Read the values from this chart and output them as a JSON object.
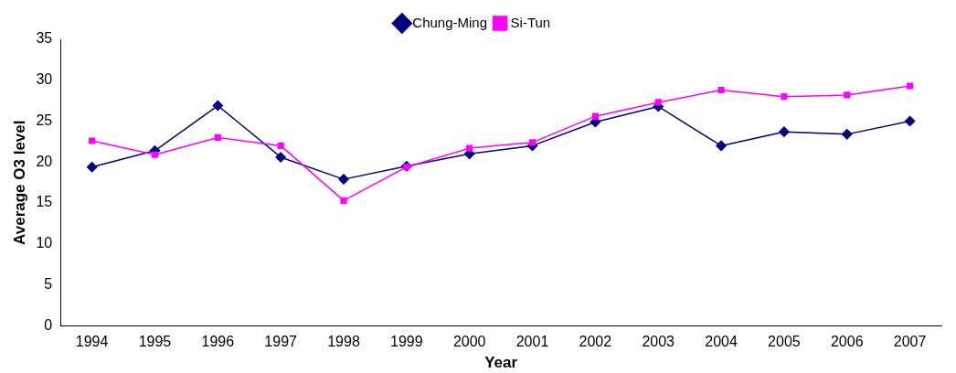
{
  "chart_data": {
    "type": "line",
    "xlabel": "Year",
    "ylabel": "Average O3 level",
    "categories": [
      "1994",
      "1995",
      "1996",
      "1997",
      "1998",
      "1999",
      "2000",
      "2001",
      "2002",
      "2003",
      "2004",
      "2005",
      "2006",
      "2007"
    ],
    "series": [
      {
        "name": "Chung-Ming",
        "color": "#000080",
        "marker": "diamond",
        "values": [
          19.4,
          21.4,
          26.9,
          20.6,
          17.9,
          19.5,
          21.0,
          22.0,
          24.9,
          26.8,
          22.0,
          23.7,
          23.4,
          25.0
        ]
      },
      {
        "name": "Si-Tun",
        "color": "#ff00ff",
        "marker": "square",
        "values": [
          22.6,
          20.9,
          23.0,
          22.0,
          15.3,
          19.4,
          21.7,
          22.4,
          25.6,
          27.3,
          28.8,
          28.0,
          28.2,
          29.3
        ]
      }
    ],
    "ylim": [
      0,
      35
    ],
    "yticks": [
      0,
      5,
      10,
      15,
      20,
      25,
      30,
      35
    ],
    "grid": false,
    "legend": "top",
    "line_style": "solid"
  }
}
